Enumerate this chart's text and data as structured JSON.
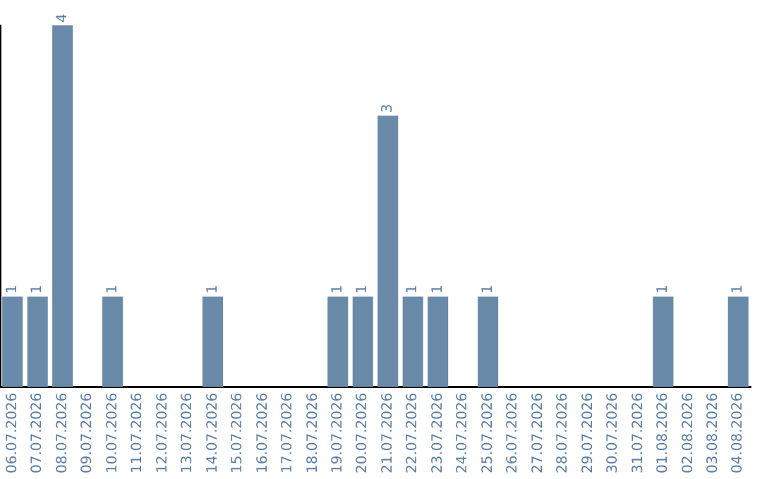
{
  "chart_data": {
    "type": "bar",
    "categories": [
      "06.07.2026",
      "07.07.2026",
      "08.07.2026",
      "09.07.2026",
      "10.07.2026",
      "11.07.2026",
      "12.07.2026",
      "13.07.2026",
      "14.07.2026",
      "15.07.2026",
      "16.07.2026",
      "17.07.2026",
      "18.07.2026",
      "19.07.2026",
      "20.07.2026",
      "21.07.2026",
      "22.07.2026",
      "23.07.2026",
      "24.07.2026",
      "25.07.2026",
      "26.07.2026",
      "27.07.2026",
      "28.07.2026",
      "29.07.2026",
      "30.07.2026",
      "31.07.2026",
      "01.08.2026",
      "02.08.2026",
      "03.08.2026",
      "04.08.2026"
    ],
    "values": [
      1,
      1,
      4,
      0,
      1,
      0,
      0,
      0,
      1,
      0,
      0,
      0,
      0,
      1,
      1,
      3,
      1,
      1,
      0,
      1,
      0,
      0,
      0,
      0,
      0,
      0,
      1,
      0,
      0,
      1
    ],
    "value_labels": [
      "1",
      "1",
      "4",
      null,
      "1",
      null,
      null,
      null,
      "1",
      null,
      null,
      null,
      null,
      "1",
      "1",
      "3",
      "1",
      "1",
      null,
      "1",
      null,
      null,
      null,
      null,
      null,
      null,
      "1",
      null,
      null,
      "1"
    ],
    "color": "#6a8aaa",
    "grid": false,
    "tick_labels": "x"
  }
}
